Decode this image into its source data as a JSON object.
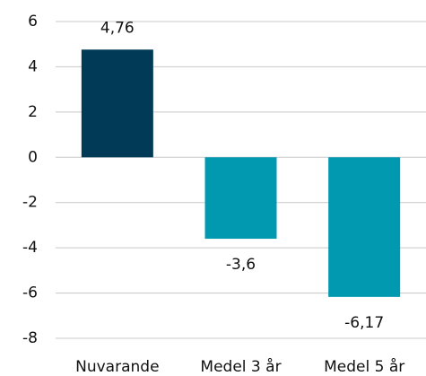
{
  "chart_data": {
    "type": "bar",
    "categories": [
      "Nuvarande",
      "Medel 3 år",
      "Medel 5 år"
    ],
    "values": [
      4.76,
      -3.6,
      -6.17
    ],
    "value_labels": [
      "4,76",
      "-3,6",
      "-6,17"
    ],
    "colors": [
      "#003a57",
      "#0099b0",
      "#0099b0"
    ],
    "ylim": [
      -8,
      6
    ],
    "yticks": [
      6,
      4,
      2,
      0,
      -2,
      -4,
      -6,
      -8
    ],
    "grid": true
  }
}
